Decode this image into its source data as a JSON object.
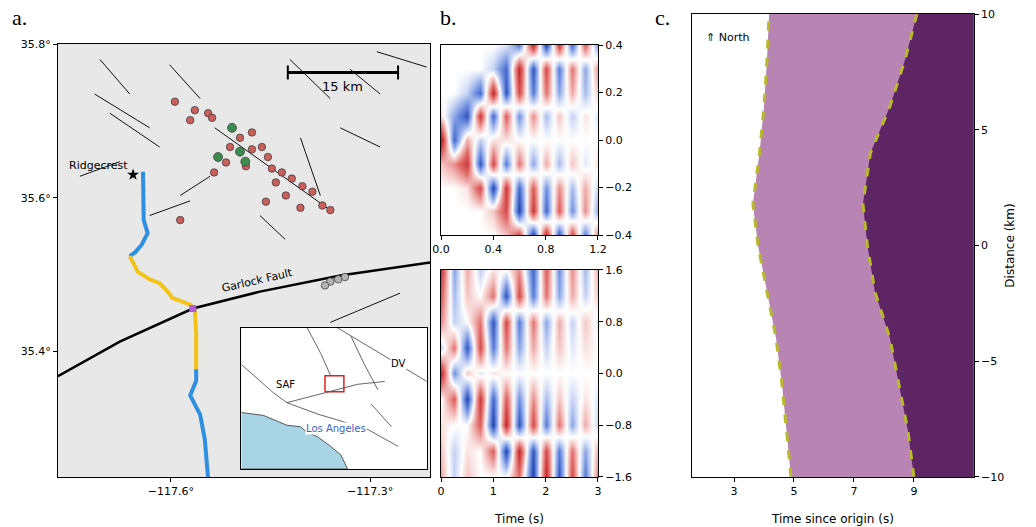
{
  "chart_data": [
    {
      "type": "map",
      "panel_label": "a.",
      "xlim": [
        -117.77,
        -117.21
      ],
      "ylim": [
        35.237,
        35.8
      ],
      "xticks": [
        {
          "value": -117.6,
          "label": "−117.6°"
        },
        {
          "value": -117.3,
          "label": "−117.3°"
        }
      ],
      "yticks": [
        {
          "value": 35.4,
          "label": "35.4°"
        },
        {
          "value": 35.6,
          "label": "35.6°"
        },
        {
          "value": 35.8,
          "label": "35.8°"
        }
      ],
      "color": "#e8e8e8",
      "faults": [
        {
          "lon": [
            -117.715,
            -117.632
          ],
          "lat": [
            35.735,
            35.691
          ]
        },
        {
          "lon": [
            -117.692,
            -117.617
          ],
          "lat": [
            35.71,
            35.666
          ]
        },
        {
          "lon": [
            -117.602,
            -117.556
          ],
          "lat": [
            35.773,
            35.729
          ]
        },
        {
          "lon": [
            -117.534,
            -117.36
          ],
          "lat": [
            35.691,
            35.584
          ]
        },
        {
          "lon": [
            -117.421,
            -117.36
          ],
          "lat": [
            35.78,
            35.729
          ]
        },
        {
          "lon": [
            -117.33,
            -117.285
          ],
          "lat": [
            35.767,
            35.735
          ]
        },
        {
          "lon": [
            -117.586,
            -117.541
          ],
          "lat": [
            35.603,
            35.628
          ]
        },
        {
          "lon": [
            -117.632,
            -117.571
          ],
          "lat": [
            35.577,
            35.596
          ]
        },
        {
          "lon": [
            -117.345,
            -117.285
          ],
          "lat": [
            35.691,
            35.666
          ]
        },
        {
          "lon": [
            -117.405,
            -117.375
          ],
          "lat": [
            35.678,
            35.603
          ]
        },
        {
          "lon": [
            -117.707,
            -117.662
          ],
          "lat": [
            35.78,
            35.735
          ]
        },
        {
          "lon": [
            -117.466,
            -117.428
          ],
          "lat": [
            35.577,
            35.546
          ]
        },
        {
          "lon": [
            -117.36,
            -117.255
          ],
          "lat": [
            35.438,
            35.476
          ]
        },
        {
          "lon": [
            -117.737,
            -117.677
          ],
          "lat": [
            35.628,
            35.647
          ]
        },
        {
          "lon": [
            -117.29,
            -117.215
          ],
          "lat": [
            35.79,
            35.77
          ]
        }
      ],
      "garlock_fault": {
        "label": "Garlock Fault",
        "lon": [
          -117.77,
          -117.677,
          -117.567,
          -117.466,
          -117.345,
          -117.209
        ],
        "lat": [
          35.368,
          35.413,
          35.456,
          35.478,
          35.499,
          35.516
        ],
        "label_lon": -117.47,
        "label_lat": 35.492
      },
      "cable": [
        {
          "color": "#2f8fe0",
          "lon": [
            -117.642,
            -117.642,
            -117.641,
            -117.635,
            -117.644,
            -117.654,
            -117.662
          ],
          "lat": [
            35.634,
            35.603,
            35.571,
            35.554,
            35.539,
            35.529,
            35.524
          ]
        },
        {
          "color": "#f2c418",
          "lon": [
            -117.662,
            -117.65,
            -117.632,
            -117.617,
            -117.605,
            -117.598,
            -117.571,
            -117.564,
            -117.562,
            -117.562,
            -117.562
          ],
          "lat": [
            35.524,
            35.504,
            35.494,
            35.489,
            35.478,
            35.47,
            35.461,
            35.453,
            35.425,
            35.4,
            35.377
          ]
        },
        {
          "color": "#2f8fe0",
          "lon": [
            -117.562,
            -117.562,
            -117.571,
            -117.556,
            -117.549,
            -117.544
          ],
          "lat": [
            35.377,
            35.362,
            35.343,
            35.318,
            35.286,
            35.235
          ]
        }
      ],
      "crossing": {
        "lon": -117.567,
        "lat": 35.456,
        "color": "#b05cd6",
        "marker": "square"
      },
      "events": [
        {
          "color": "#c8605c",
          "marker": "circle",
          "lon": [
            -117.594,
            -117.564,
            -117.544,
            -117.538,
            -117.571,
            -117.496,
            -117.478,
            -117.463,
            -117.454,
            -117.448,
            -117.433,
            -117.418,
            -117.402,
            -117.387,
            -117.372,
            -117.36,
            -117.405,
            -117.442,
            -117.487,
            -117.517,
            -117.535,
            -117.457,
            -117.427,
            -117.586,
            -117.478,
            -117.511
          ],
          "lat": [
            35.725,
            35.714,
            35.71,
            35.704,
            35.701,
            35.678,
            35.663,
            35.666,
            35.653,
            35.638,
            35.633,
            35.625,
            35.615,
            35.608,
            35.59,
            35.584,
            35.587,
            35.62,
            35.641,
            35.646,
            35.633,
            35.595,
            35.603,
            35.571,
            35.685,
            35.666
          ]
        },
        {
          "color": "#3d8b4f",
          "marker": "circle",
          "lon": [
            -117.508,
            -117.488,
            -117.529,
            -117.496
          ],
          "lat": [
            35.691,
            35.647,
            35.653,
            35.66
          ]
        },
        {
          "color": "#b4b4b4",
          "marker": "circle",
          "lon": [
            -117.36,
            -117.348,
            -117.338,
            -117.368
          ],
          "lat": [
            35.491,
            35.494,
            35.497,
            35.486
          ]
        }
      ],
      "town": {
        "label": "Ridgecrest",
        "lon": -117.657,
        "lat": 35.63,
        "marker": "star"
      },
      "scale_bar": {
        "label": "15 km",
        "lon": [
          -117.424,
          -117.258
        ],
        "lat": 35.763
      },
      "inset": {
        "xlim": [
          -120.25,
          -114.75
        ],
        "ylim": [
          32.5,
          37.5
        ],
        "tick_labels": false,
        "ocean": {
          "color": "#a8d4e6",
          "lon": [
            -120.25,
            -119.6,
            -118.9,
            -118.5,
            -118.3,
            -118.0,
            -117.6,
            -117.3,
            -117.1,
            -120.25
          ],
          "lat": [
            34.5,
            34.4,
            34.05,
            34.0,
            33.8,
            33.65,
            33.3,
            33.0,
            32.5,
            32.5
          ]
        },
        "faults": [
          {
            "lon": [
              -120.25,
              -119.3,
              -118.9,
              -118.0,
              -117.3,
              -116.5,
              -115.6
            ],
            "lat": [
              36.2,
              35.2,
              34.85,
              34.45,
              34.2,
              33.9,
              33.3
            ]
          },
          {
            "lon": [
              -118.9,
              -117.8,
              -116.8,
              -116.0
            ],
            "lat": [
              34.85,
              35.2,
              35.5,
              35.6
            ]
          },
          {
            "lon": [
              -118.3,
              -117.9,
              -117.6
            ],
            "lat": [
              37.5,
              36.6,
              35.8
            ]
          },
          {
            "lon": [
              -117.4,
              -116.3,
              -115.3,
              -114.75
            ],
            "lat": [
              37.5,
              36.7,
              36.0,
              35.6
            ]
          },
          {
            "lon": [
              -117.0,
              -116.6,
              -116.2
            ],
            "lat": [
              37.2,
              36.2,
              35.3
            ]
          },
          {
            "lon": [
              -116.4,
              -115.8
            ],
            "lat": [
              34.8,
              34.0
            ]
          }
        ],
        "labels": [
          {
            "text": "SAF",
            "lon": -118.95,
            "lat": 35.5,
            "color": "#000000"
          },
          {
            "text": "DV",
            "lon": -115.6,
            "lat": 36.25,
            "color": "#000000"
          },
          {
            "text": "Los Angeles",
            "lon": -117.45,
            "lat": 33.95,
            "color": "#3a5fcd"
          }
        ],
        "color": "#e0201c"
      }
    },
    {
      "type": "heatmap",
      "panel_label": "b.",
      "x": [
        0,
        0.1,
        0.2,
        0.3,
        0.4,
        0.5,
        0.6,
        0.7,
        0.8,
        0.9,
        1.0,
        1.1,
        1.2
      ],
      "y": [
        -0.4,
        -0.3,
        -0.2,
        -0.1,
        0,
        0.1,
        0.2,
        0.3,
        0.4
      ],
      "z": [
        [
          0,
          0,
          0,
          0,
          0,
          0.2,
          0.7,
          -0.9,
          0.9,
          -0.8,
          0.7,
          -0.6,
          0.5
        ],
        [
          0,
          0,
          0,
          0,
          0.2,
          0.7,
          -0.9,
          0.8,
          -0.7,
          0.6,
          -0.5,
          0.4,
          -0.4
        ],
        [
          0,
          0,
          0.1,
          0.7,
          -0.9,
          0.8,
          -0.7,
          0.6,
          -0.5,
          0.4,
          -0.3,
          0.3,
          -0.2
        ],
        [
          0.2,
          0.4,
          0.8,
          -0.8,
          0.7,
          -0.6,
          0.5,
          -0.4,
          0.3,
          -0.3,
          0.2,
          -0.1,
          0.1
        ],
        [
          1,
          -0.7,
          0.3,
          -0.2,
          0.1,
          0.1,
          0,
          0,
          0,
          0,
          0,
          0,
          0
        ],
        [
          0.1,
          -0.4,
          -0.8,
          0.8,
          -0.7,
          0.6,
          -0.5,
          0.4,
          -0.3,
          0.2,
          -0.2,
          0.1,
          -0.1
        ],
        [
          0,
          0,
          -0.2,
          -0.7,
          0.9,
          -0.8,
          0.7,
          -0.6,
          0.5,
          -0.4,
          0.3,
          -0.3,
          0.2
        ],
        [
          0,
          0,
          0,
          0,
          -0.2,
          -0.7,
          0.9,
          -0.8,
          0.7,
          -0.6,
          0.5,
          -0.4,
          0.4
        ],
        [
          0,
          0,
          0,
          0,
          0,
          -0.1,
          -0.6,
          0.9,
          -0.9,
          0.8,
          -0.7,
          0.6,
          -0.5
        ]
      ],
      "zlim": [
        -1,
        1
      ],
      "xlim": [
        0,
        1.2
      ],
      "ylim": [
        -0.4,
        0.4
      ],
      "xticks": [
        {
          "value": 0,
          "label": "0.0"
        },
        0.4,
        0.8,
        1.2
      ],
      "yticks": [
        {
          "value": -0.4,
          "label": "−0.4"
        },
        {
          "value": -0.2,
          "label": "−0.2"
        },
        {
          "value": 0,
          "label": "0.0"
        },
        0.2,
        0.4
      ]
    },
    {
      "type": "heatmap",
      "x": [
        0,
        0.25,
        0.5,
        0.75,
        1,
        1.25,
        1.5,
        1.75,
        2,
        2.25,
        2.5,
        2.75,
        3
      ],
      "y": [
        -1.6,
        -1.2,
        -0.8,
        -0.4,
        0,
        0.4,
        0.8,
        1.2,
        1.6
      ],
      "z": [
        [
          0.3,
          -0.2,
          0.2,
          0,
          0,
          0,
          0.5,
          -0.9,
          0.9,
          -0.8,
          0.7,
          -0.6,
          0.5
        ],
        [
          0.2,
          -0.2,
          0.1,
          0,
          0.6,
          -0.9,
          0.9,
          -0.8,
          0.7,
          -0.6,
          0.5,
          -0.4,
          0.3
        ],
        [
          0.1,
          0,
          0,
          0.6,
          -0.9,
          0.9,
          -0.8,
          0.7,
          -0.6,
          0.5,
          -0.4,
          0.3,
          -0.2
        ],
        [
          0,
          0.6,
          -0.9,
          0.8,
          -0.7,
          0.6,
          -0.5,
          0.4,
          -0.3,
          0.2,
          -0.2,
          0.1,
          -0.1
        ],
        [
          0.9,
          -0.5,
          0.2,
          -0.1,
          0.1,
          0,
          0,
          0,
          0,
          0,
          0,
          0,
          0
        ],
        [
          -0.2,
          0.5,
          -0.8,
          0.7,
          -0.6,
          0.5,
          -0.4,
          0.3,
          -0.2,
          0.2,
          -0.1,
          0.1,
          0
        ],
        [
          0.4,
          -0.2,
          0,
          0.5,
          -0.8,
          0.7,
          -0.6,
          0.5,
          -0.4,
          0.3,
          -0.2,
          0.2,
          -0.1
        ],
        [
          0.6,
          -0.3,
          0.2,
          0,
          0.5,
          -0.8,
          0.7,
          -0.6,
          0.5,
          -0.4,
          0.3,
          -0.2,
          0.2
        ],
        [
          0.8,
          -0.4,
          0.3,
          -0.2,
          0.1,
          0,
          0.4,
          -0.7,
          0.6,
          -0.5,
          0.4,
          -0.3,
          0.3
        ]
      ],
      "zlim": [
        -1,
        1
      ],
      "xlim": [
        0,
        3
      ],
      "ylim": [
        -1.6,
        1.6
      ],
      "xticks": [
        0,
        1,
        2,
        3
      ],
      "yticks": [
        {
          "value": -1.6,
          "label": "−1.6"
        },
        {
          "value": -0.8,
          "label": "−0.8"
        },
        {
          "value": 0,
          "label": "0.0"
        },
        0.8,
        1.6
      ],
      "x_label": "Time (s)"
    },
    {
      "type": "line",
      "panel_label": "c.",
      "xlim": [
        1.6,
        11
      ],
      "ylim": [
        -10,
        10
      ],
      "xticks": [
        3,
        5,
        7,
        9
      ],
      "yticks": [
        {
          "value": -10,
          "label": "−10"
        },
        {
          "value": -5,
          "label": "−5"
        },
        0,
        5,
        10
      ],
      "x_label": "Time since origin (s)",
      "y_label": "Distance (km)",
      "annotation": {
        "text": "⇑ North",
        "x": 2.0,
        "y": 9
      },
      "y": [
        -10,
        -8,
        -6,
        -4,
        -2,
        0,
        1.8,
        4,
        6,
        8,
        10
      ],
      "series": [
        {
          "color": "#b784b4",
          "values": [
            4.9,
            4.75,
            4.6,
            4.4,
            4.1,
            3.8,
            3.63,
            3.85,
            4.0,
            4.1,
            4.17
          ]
        },
        {
          "color": "#5e2564",
          "values": [
            9.0,
            8.8,
            8.5,
            8.2,
            7.7,
            7.45,
            7.3,
            7.55,
            8.2,
            8.7,
            9.1
          ]
        }
      ],
      "picks": {
        "color": "#b9b92c",
        "line_style": "dashed"
      }
    }
  ]
}
